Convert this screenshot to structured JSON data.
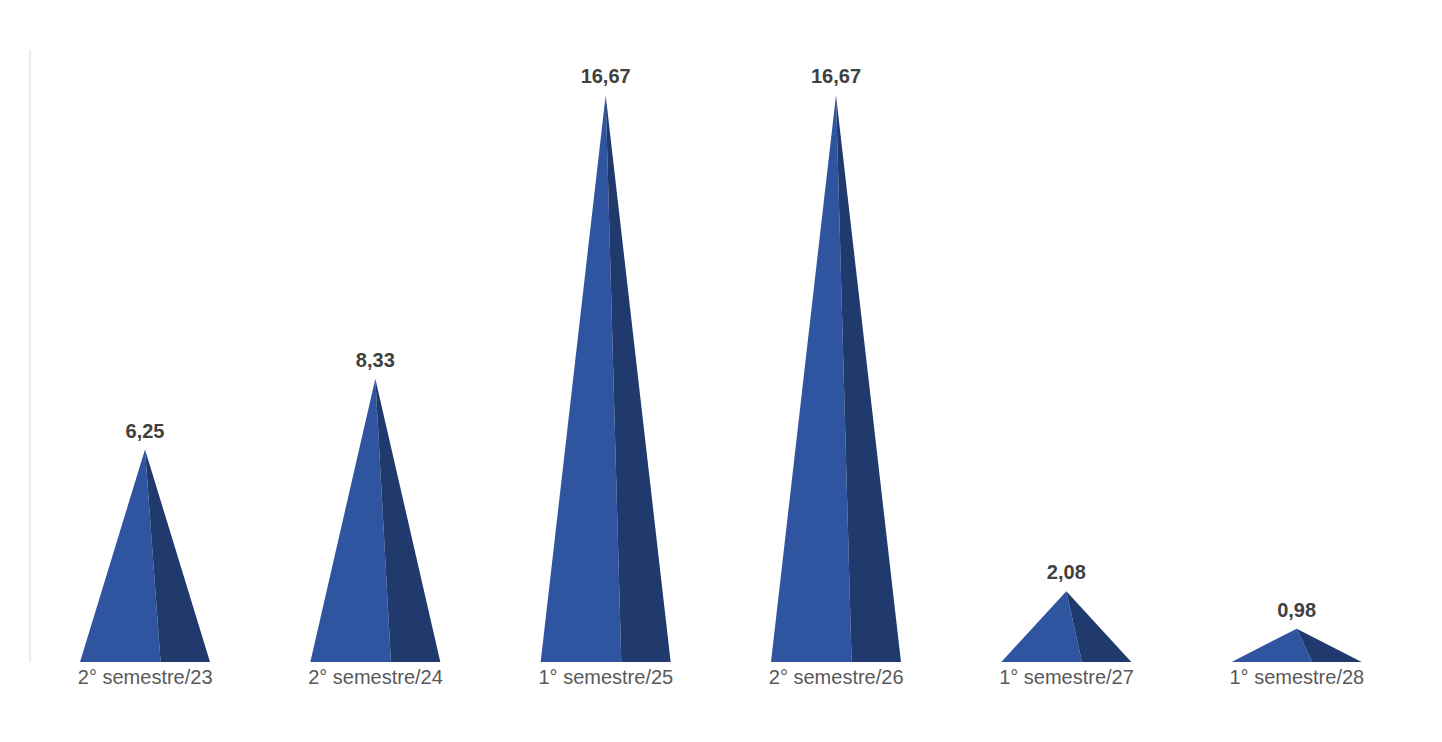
{
  "chart_data": {
    "type": "bar",
    "categories": [
      "2° semestre/23",
      "2° semestre/24",
      "1° semestre/25",
      "2° semestre/26",
      "1° semestre/27",
      "1° semestre/28"
    ],
    "values": [
      6.25,
      8.33,
      16.67,
      16.67,
      2.08,
      0.98
    ],
    "value_labels": [
      "6,25",
      "8,33",
      "16,67",
      "16,67",
      "2,08",
      "0,98"
    ],
    "color": "#2f55a0",
    "ylim": [
      0,
      18
    ],
    "data_labels": true,
    "tick_labels": "x",
    "grid": false,
    "marker": "pyramid"
  }
}
